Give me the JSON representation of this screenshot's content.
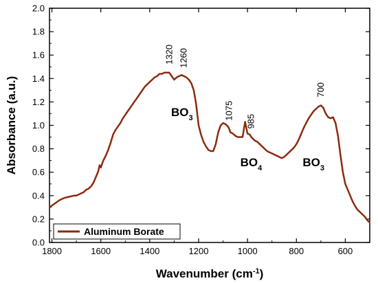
{
  "chart_data": {
    "type": "line",
    "xlabel_main": "Wavenumber (cm",
    "xlabel_sup": "-1",
    "xlabel_end": ")",
    "ylabel": "Absorbance (a.u.)",
    "xlim": [
      1810,
      500
    ],
    "ylim": [
      0,
      2.0
    ],
    "x_ticks": [
      1800,
      1600,
      1400,
      1200,
      1000,
      800,
      600
    ],
    "x_tick_labels": [
      "1800",
      "1600",
      "1400",
      "1200",
      "1000",
      "800",
      "600"
    ],
    "y_ticks": [
      0,
      0.2,
      0.4,
      0.6,
      0.8,
      1.0,
      1.2,
      1.4,
      1.6,
      1.8,
      2.0
    ],
    "y_tick_labels": [
      "0.0",
      "0.2",
      "0.4",
      "0.6",
      "0.8",
      "1.0",
      "1.2",
      "1.4",
      "1.6",
      "1.8",
      "2.0"
    ],
    "grid": false,
    "legend_position": "bottom-left",
    "series": [
      {
        "name": "Aluminum Borate",
        "color": "#8b2a0e",
        "x": [
          1810,
          1790,
          1770,
          1750,
          1730,
          1710,
          1700,
          1690,
          1680,
          1670,
          1660,
          1650,
          1640,
          1630,
          1620,
          1610,
          1605,
          1600,
          1590,
          1580,
          1570,
          1560,
          1550,
          1540,
          1530,
          1520,
          1510,
          1500,
          1490,
          1480,
          1470,
          1460,
          1450,
          1440,
          1430,
          1420,
          1410,
          1400,
          1390,
          1380,
          1370,
          1360,
          1350,
          1340,
          1330,
          1320,
          1310,
          1300,
          1290,
          1280,
          1270,
          1260,
          1250,
          1240,
          1230,
          1220,
          1210,
          1200,
          1190,
          1180,
          1170,
          1160,
          1150,
          1140,
          1130,
          1120,
          1110,
          1100,
          1090,
          1080,
          1075,
          1070,
          1060,
          1050,
          1040,
          1030,
          1020,
          1010,
          1000,
          990,
          985,
          980,
          975,
          970,
          960,
          950,
          940,
          930,
          920,
          910,
          900,
          890,
          880,
          870,
          860,
          850,
          840,
          830,
          820,
          810,
          800,
          790,
          780,
          770,
          760,
          750,
          740,
          730,
          720,
          710,
          700,
          690,
          680,
          670,
          660,
          650,
          640,
          630,
          620,
          610,
          600,
          590,
          580,
          570,
          560,
          550,
          540,
          530,
          520,
          510,
          500
        ],
        "y": [
          0.3,
          0.33,
          0.36,
          0.38,
          0.39,
          0.4,
          0.4,
          0.41,
          0.42,
          0.43,
          0.45,
          0.46,
          0.48,
          0.51,
          0.56,
          0.61,
          0.66,
          0.64,
          0.7,
          0.74,
          0.79,
          0.85,
          0.92,
          0.96,
          0.99,
          1.02,
          1.06,
          1.09,
          1.12,
          1.15,
          1.18,
          1.21,
          1.24,
          1.27,
          1.3,
          1.33,
          1.35,
          1.37,
          1.39,
          1.41,
          1.42,
          1.44,
          1.44,
          1.45,
          1.45,
          1.45,
          1.42,
          1.39,
          1.41,
          1.42,
          1.43,
          1.42,
          1.41,
          1.39,
          1.36,
          1.3,
          1.18,
          1.0,
          0.92,
          0.86,
          0.82,
          0.79,
          0.78,
          0.78,
          0.84,
          0.94,
          1.0,
          1.02,
          1.01,
          0.99,
          0.97,
          0.94,
          0.93,
          0.91,
          0.9,
          0.9,
          0.9,
          1.03,
          0.93,
          0.92,
          0.9,
          0.89,
          0.88,
          0.87,
          0.86,
          0.84,
          0.82,
          0.8,
          0.78,
          0.77,
          0.76,
          0.75,
          0.74,
          0.73,
          0.72,
          0.73,
          0.75,
          0.77,
          0.79,
          0.81,
          0.84,
          0.88,
          0.93,
          0.98,
          1.02,
          1.06,
          1.09,
          1.12,
          1.14,
          1.16,
          1.17,
          1.15,
          1.1,
          1.07,
          1.06,
          1.07,
          1.02,
          0.91,
          0.75,
          0.6,
          0.5,
          0.45,
          0.4,
          0.35,
          0.31,
          0.28,
          0.26,
          0.24,
          0.22,
          0.19,
          0.17
        ]
      }
    ],
    "peak_labels": [
      {
        "x": 1320,
        "text": "1320"
      },
      {
        "x": 1260,
        "text": "1260"
      },
      {
        "x": 1075,
        "text": "1075"
      },
      {
        "x": 985,
        "text": "985"
      },
      {
        "x": 700,
        "text": "700"
      }
    ],
    "group_labels": [
      {
        "main": "BO",
        "sub": "3"
      },
      {
        "main": "BO",
        "sub": "4"
      },
      {
        "main": "BO",
        "sub": "3"
      }
    ],
    "legend_label": "Aluminum Borate"
  }
}
